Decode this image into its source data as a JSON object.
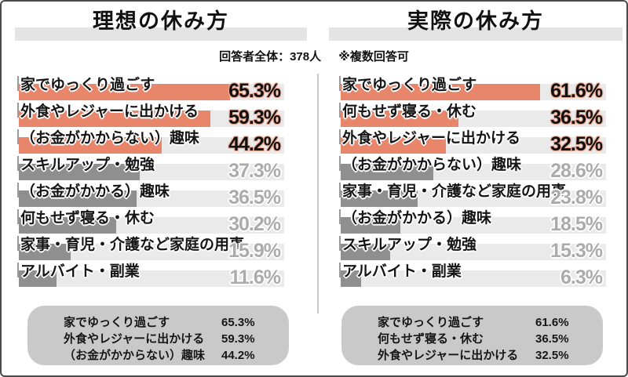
{
  "page": {
    "left_title": "理想の休み方",
    "right_title": "実際の休み方",
    "subtitle_respondents": "回答者全体：378人",
    "subtitle_note": "※複数回答可"
  },
  "colors": {
    "bar_highlight": "#E8866B",
    "bar_normal": "#8F8F8F",
    "track": "#EAEAEA",
    "title_underline": "#E4E4E4",
    "summary_box": "#C9C9C9",
    "highlight_value_text": "#101010",
    "normal_value_text": "#ABABAB"
  },
  "chart_data": [
    {
      "type": "bar",
      "title": "理想の休み方",
      "orientation": "horizontal",
      "unit": "%",
      "xlim": [
        0,
        82
      ],
      "grid": false,
      "legend": "none",
      "highlight_count": 3,
      "categories": [
        "家でゆっくり過ごす",
        "外食やレジャーに出かける",
        "（お金がかからない）趣味",
        "スキルアップ・勉強",
        "（お金がかかる）趣味",
        "何もせず寝る・休む",
        "家事・育児・介護など家庭の用事",
        "アルバイト・副業"
      ],
      "values": [
        65.3,
        59.3,
        44.2,
        37.3,
        36.5,
        30.2,
        15.9,
        11.6
      ],
      "value_labels": [
        "65.3%",
        "59.3%",
        "44.2%",
        "37.3%",
        "36.5%",
        "30.2%",
        "15.9%",
        "11.6%"
      ]
    },
    {
      "type": "bar",
      "title": "実際の休み方",
      "orientation": "horizontal",
      "unit": "%",
      "xlim": [
        0,
        82
      ],
      "grid": false,
      "legend": "none",
      "highlight_count": 3,
      "categories": [
        "家でゆっくり過ごす",
        "何もせず寝る・休む",
        "外食やレジャーに出かける",
        "（お金がかからない）趣味",
        "家事・育児・介護など家庭の用事",
        "（お金がかかる）趣味",
        "スキルアップ・勉強",
        "アルバイト・副業"
      ],
      "values": [
        61.6,
        36.5,
        32.5,
        28.6,
        23.8,
        18.5,
        15.3,
        6.3
      ],
      "value_labels": [
        "61.6%",
        "36.5%",
        "32.5%",
        "28.6%",
        "23.8%",
        "18.5%",
        "15.3%",
        "6.3%"
      ]
    }
  ],
  "summaries": [
    {
      "rows": [
        {
          "label": "家でゆっくり過ごす",
          "value": "65.3%"
        },
        {
          "label": "外食やレジャーに出かける",
          "value": "59.3%"
        },
        {
          "label": "（お金がかからない）趣味",
          "value": "44.2%"
        }
      ]
    },
    {
      "rows": [
        {
          "label": "家でゆっくり過ごす",
          "value": "61.6%"
        },
        {
          "label": "何もせず寝る・休む",
          "value": "36.5%"
        },
        {
          "label": "外食やレジャーに出かける",
          "value": "32.5%"
        }
      ]
    }
  ]
}
